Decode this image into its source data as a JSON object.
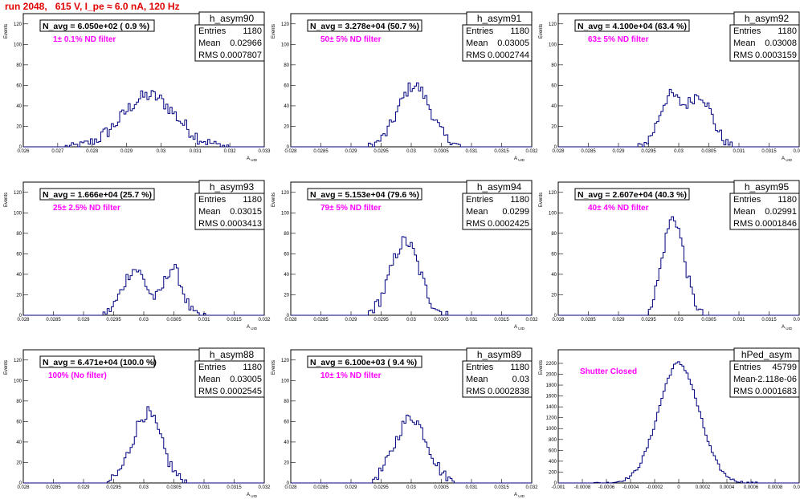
{
  "run_title": "run 2048,   615 V, I_pe ≈ 6.0 nA, 120 Hz",
  "colors": {
    "title": "#e00000",
    "histogram": "#000080",
    "filter_label": "#ff00ff",
    "frame": "#000000",
    "background": "#ffffff"
  },
  "stat_labels": [
    "Entries",
    "Mean",
    "RMS"
  ],
  "chart_data": [
    {
      "type": "bar",
      "name": "h_asym90",
      "ylabel": "Events",
      "xlabel": "A_UID",
      "avg_label": "N_avg = 6.050e+02 ( 0.9 %)",
      "filter_label": "1± 0.1% ND filter",
      "stats": {
        "entries": "1180",
        "mean": "0.02966",
        "rms": "0.0007807"
      },
      "xlim": [
        0.026,
        0.033
      ],
      "ylim": [
        0,
        130
      ],
      "x_ticks": [
        "0.026",
        "0.027",
        "0.028",
        "0.029",
        "0.03",
        "0.031",
        "0.032",
        "0.033"
      ],
      "x_tick_values": [
        0.026,
        0.027,
        0.028,
        0.029,
        0.03,
        0.031,
        0.032,
        0.033
      ],
      "y_ticks": [
        0,
        20,
        40,
        60,
        80,
        100,
        120
      ],
      "peaks": [
        {
          "mean": 0.02966,
          "sigma": 0.00078,
          "amp": 50
        }
      ],
      "noise": 7,
      "range": [
        0.0272,
        0.0322
      ]
    },
    {
      "type": "bar",
      "name": "h_asym91",
      "ylabel": "Events",
      "xlabel": "A_UID",
      "avg_label": "N_avg = 3.278e+04 (50.7 %)",
      "filter_label": "50± 5% ND filter",
      "stats": {
        "entries": "1180",
        "mean": "0.03005",
        "rms": "0.0002744"
      },
      "xlim": [
        0.028,
        0.032
      ],
      "ylim": [
        0,
        130
      ],
      "x_ticks": [
        "0.028",
        "0.0285",
        "0.029",
        "0.0295",
        "0.03",
        "0.0305",
        "0.031",
        "0.0315",
        "0.032"
      ],
      "x_tick_values": [
        0.028,
        0.0285,
        0.029,
        0.0295,
        0.03,
        0.0305,
        0.031,
        0.0315,
        0.032
      ],
      "y_ticks": [
        0,
        20,
        40,
        60,
        80,
        100,
        120
      ],
      "peaks": [
        {
          "mean": 0.03005,
          "sigma": 0.00027,
          "amp": 60
        }
      ],
      "noise": 6,
      "range": [
        0.0293,
        0.0308
      ]
    },
    {
      "type": "bar",
      "name": "h_asym92",
      "ylabel": "Events",
      "xlabel": "A_UID",
      "avg_label": "N_avg = 4.100e+04 (63.4 %)",
      "filter_label": "63± 5% ND filter",
      "stats": {
        "entries": "1180",
        "mean": "0.03008",
        "rms": "0.0003159"
      },
      "xlim": [
        0.028,
        0.032
      ],
      "ylim": [
        0,
        130
      ],
      "x_ticks": [
        "0.028",
        "0.0285",
        "0.029",
        "0.0295",
        "0.03",
        "0.0305",
        "0.031",
        "0.0315",
        "0.032"
      ],
      "x_tick_values": [
        0.028,
        0.0285,
        0.029,
        0.0295,
        0.03,
        0.0305,
        0.031,
        0.0315,
        0.032
      ],
      "y_ticks": [
        0,
        20,
        40,
        60,
        80,
        100,
        120
      ],
      "peaks": [
        {
          "mean": 0.02985,
          "sigma": 0.00018,
          "amp": 48
        },
        {
          "mean": 0.03035,
          "sigma": 0.0002,
          "amp": 50
        }
      ],
      "noise": 6,
      "range": [
        0.0293,
        0.031
      ]
    },
    {
      "type": "bar",
      "name": "h_asym93",
      "ylabel": "Events",
      "xlabel": "A_UID",
      "avg_label": "N_avg = 1.666e+04 (25.7 %)",
      "filter_label": "25± 2.5% ND filter",
      "stats": {
        "entries": "1180",
        "mean": "0.03015",
        "rms": "0.0003413"
      },
      "xlim": [
        0.028,
        0.032
      ],
      "ylim": [
        0,
        130
      ],
      "x_ticks": [
        "0.028",
        "0.0285",
        "0.029",
        "0.0295",
        "0.03",
        "0.0305",
        "0.031",
        "0.0315",
        "0.032"
      ],
      "x_tick_values": [
        0.028,
        0.0285,
        0.029,
        0.0295,
        0.03,
        0.0305,
        0.031,
        0.0315,
        0.032
      ],
      "y_ticks": [
        0,
        20,
        40,
        60,
        80,
        100,
        120
      ],
      "peaks": [
        {
          "mean": 0.02985,
          "sigma": 0.0002,
          "amp": 45
        },
        {
          "mean": 0.03048,
          "sigma": 0.00015,
          "amp": 46
        }
      ],
      "noise": 6,
      "range": [
        0.0293,
        0.0311
      ]
    },
    {
      "type": "bar",
      "name": "h_asym94",
      "ylabel": "Events",
      "xlabel": "A_UID",
      "avg_label": "N_avg = 5.153e+04 (79.6 %)",
      "filter_label": "79± 5% ND filter",
      "stats": {
        "entries": "1180",
        "mean": "0.0299",
        "rms": "0.0002425"
      },
      "xlim": [
        0.028,
        0.032
      ],
      "ylim": [
        0,
        130
      ],
      "x_ticks": [
        "0.028",
        "0.0285",
        "0.029",
        "0.0295",
        "0.03",
        "0.0305",
        "0.031",
        "0.0315",
        "0.032"
      ],
      "x_tick_values": [
        0.028,
        0.0285,
        0.029,
        0.0295,
        0.03,
        0.0305,
        0.031,
        0.0315,
        0.032
      ],
      "y_ticks": [
        0,
        20,
        40,
        60,
        80,
        100,
        120
      ],
      "peaks": [
        {
          "mean": 0.0299,
          "sigma": 0.00024,
          "amp": 72
        }
      ],
      "noise": 7,
      "range": [
        0.0293,
        0.0306
      ]
    },
    {
      "type": "bar",
      "name": "h_asym95",
      "ylabel": "Events",
      "xlabel": "A_UID",
      "avg_label": "N_avg = 2.607e+04 (40.3 %)",
      "filter_label": "40± 4% ND filter",
      "stats": {
        "entries": "1180",
        "mean": "0.02991",
        "rms": "0.0001846"
      },
      "xlim": [
        0.028,
        0.032
      ],
      "ylim": [
        0,
        130
      ],
      "x_ticks": [
        "0.028",
        "0.0285",
        "0.029",
        "0.0295",
        "0.03",
        "0.0305",
        "0.031",
        "0.0315",
        "0.032"
      ],
      "x_tick_values": [
        0.028,
        0.0285,
        0.029,
        0.0295,
        0.03,
        0.0305,
        0.031,
        0.0315,
        0.032
      ],
      "y_ticks": [
        0,
        20,
        40,
        60,
        80,
        100,
        120
      ],
      "peaks": [
        {
          "mean": 0.02991,
          "sigma": 0.00018,
          "amp": 95
        }
      ],
      "noise": 6,
      "range": [
        0.0295,
        0.0304
      ]
    },
    {
      "type": "bar",
      "name": "h_asym88",
      "ylabel": "Events",
      "xlabel": "A_UID",
      "avg_label": "N_avg = 6.471e+04 (100.0 %)",
      "filter_label": "100% (No filter)",
      "stats": {
        "entries": "1180",
        "mean": "0.03005",
        "rms": "0.0002545"
      },
      "xlim": [
        0.028,
        0.032
      ],
      "ylim": [
        0,
        130
      ],
      "x_ticks": [
        "0.028",
        "0.0285",
        "0.029",
        "0.0295",
        "0.03",
        "0.0305",
        "0.031",
        "0.0315",
        "0.032"
      ],
      "x_tick_values": [
        0.028,
        0.0285,
        0.029,
        0.0295,
        0.03,
        0.0305,
        0.031,
        0.0315,
        0.032
      ],
      "y_ticks": [
        0,
        20,
        40,
        60,
        80,
        100,
        120
      ],
      "peaks": [
        {
          "mean": 0.03005,
          "sigma": 0.00024,
          "amp": 68
        }
      ],
      "noise": 7,
      "range": [
        0.0294,
        0.0307
      ]
    },
    {
      "type": "bar",
      "name": "h_asym89",
      "ylabel": "Events",
      "xlabel": "A_UID",
      "avg_label": "N_avg = 6.100e+03 ( 9.4 %)",
      "filter_label": "10± 1% ND filter",
      "stats": {
        "entries": "1180",
        "mean": "0.03",
        "rms": "0.0002838"
      },
      "xlim": [
        0.028,
        0.032
      ],
      "ylim": [
        0,
        130
      ],
      "x_ticks": [
        "0.028",
        "0.0285",
        "0.029",
        "0.0295",
        "0.03",
        "0.0305",
        "0.031",
        "0.0315",
        "0.032"
      ],
      "x_tick_values": [
        0.028,
        0.0285,
        0.029,
        0.0295,
        0.03,
        0.0305,
        0.031,
        0.0315,
        0.032
      ],
      "y_ticks": [
        0,
        20,
        40,
        60,
        80,
        100,
        120
      ],
      "peaks": [
        {
          "mean": 0.03,
          "sigma": 0.00027,
          "amp": 64
        }
      ],
      "noise": 6,
      "range": [
        0.0293,
        0.0308
      ]
    },
    {
      "type": "bar",
      "name": "hPed_asym",
      "ylabel": "Events",
      "xlabel": "",
      "avg_label": "",
      "filter_label": "Shutter Closed",
      "stats": {
        "entries": "45799",
        "mean": "-2.118e-06",
        "rms": "0.0001683"
      },
      "xlim": [
        -0.001,
        0.001
      ],
      "ylim": [
        0,
        2450
      ],
      "x_ticks": [
        "-0.001",
        "-0.0008",
        "-0.0006",
        "-0.0004",
        "-0.0002",
        "0",
        "0.0002",
        "0.0004",
        "0.0006",
        "0.0008",
        "0.001"
      ],
      "x_tick_values": [
        -0.001,
        -0.0008,
        -0.0006,
        -0.0004,
        -0.0002,
        0,
        0.0002,
        0.0004,
        0.0006,
        0.0008,
        0.001
      ],
      "y_ticks": [
        0,
        200,
        400,
        600,
        800,
        1000,
        1200,
        1400,
        1600,
        1800,
        2000,
        2200
      ],
      "peaks": [
        {
          "mean": 0.0,
          "sigma": 0.000168,
          "amp": 2200
        }
      ],
      "noise": 40,
      "range": [
        -0.0007,
        0.0007
      ]
    }
  ]
}
